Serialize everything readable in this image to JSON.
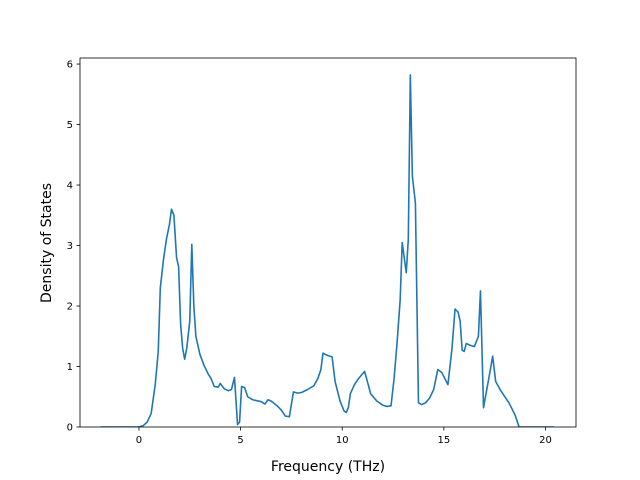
{
  "chart_data": {
    "type": "line",
    "title": "",
    "xlabel": "Frequency (THz)",
    "ylabel": "Density of States",
    "xlim": [
      -2.9,
      21.5
    ],
    "ylim": [
      0,
      6.1
    ],
    "xticks": [
      0,
      5,
      10,
      15,
      20
    ],
    "yticks": [
      0,
      1,
      2,
      3,
      4,
      5,
      6
    ],
    "grid": false,
    "legend": "none",
    "series": [
      {
        "color": "#1f77b4",
        "points": [
          [
            -1.9,
            0.0
          ],
          [
            -1.0,
            0.0
          ],
          [
            0.0,
            0.0
          ],
          [
            0.2,
            0.02
          ],
          [
            0.4,
            0.08
          ],
          [
            0.6,
            0.22
          ],
          [
            0.8,
            0.7
          ],
          [
            0.95,
            1.25
          ],
          [
            1.05,
            2.3
          ],
          [
            1.2,
            2.75
          ],
          [
            1.35,
            3.1
          ],
          [
            1.5,
            3.35
          ],
          [
            1.6,
            3.6
          ],
          [
            1.72,
            3.5
          ],
          [
            1.85,
            2.8
          ],
          [
            1.95,
            2.65
          ],
          [
            2.05,
            1.7
          ],
          [
            2.15,
            1.3
          ],
          [
            2.25,
            1.12
          ],
          [
            2.35,
            1.3
          ],
          [
            2.5,
            1.75
          ],
          [
            2.6,
            3.02
          ],
          [
            2.7,
            2.0
          ],
          [
            2.8,
            1.5
          ],
          [
            3.0,
            1.2
          ],
          [
            3.2,
            1.02
          ],
          [
            3.4,
            0.88
          ],
          [
            3.55,
            0.8
          ],
          [
            3.7,
            0.67
          ],
          [
            3.9,
            0.66
          ],
          [
            4.0,
            0.72
          ],
          [
            4.2,
            0.63
          ],
          [
            4.4,
            0.6
          ],
          [
            4.55,
            0.62
          ],
          [
            4.7,
            0.82
          ],
          [
            4.85,
            0.04
          ],
          [
            4.95,
            0.08
          ],
          [
            5.05,
            0.67
          ],
          [
            5.2,
            0.65
          ],
          [
            5.35,
            0.5
          ],
          [
            5.6,
            0.45
          ],
          [
            6.0,
            0.42
          ],
          [
            6.2,
            0.38
          ],
          [
            6.35,
            0.45
          ],
          [
            6.5,
            0.43
          ],
          [
            6.8,
            0.35
          ],
          [
            7.0,
            0.28
          ],
          [
            7.2,
            0.18
          ],
          [
            7.4,
            0.17
          ],
          [
            7.6,
            0.58
          ],
          [
            7.8,
            0.56
          ],
          [
            8.0,
            0.57
          ],
          [
            8.3,
            0.62
          ],
          [
            8.6,
            0.68
          ],
          [
            8.8,
            0.8
          ],
          [
            8.95,
            0.95
          ],
          [
            9.05,
            1.22
          ],
          [
            9.3,
            1.18
          ],
          [
            9.5,
            1.16
          ],
          [
            9.65,
            0.75
          ],
          [
            9.9,
            0.42
          ],
          [
            10.1,
            0.26
          ],
          [
            10.2,
            0.24
          ],
          [
            10.3,
            0.32
          ],
          [
            10.4,
            0.55
          ],
          [
            10.6,
            0.7
          ],
          [
            10.8,
            0.8
          ],
          [
            11.1,
            0.92
          ],
          [
            11.4,
            0.55
          ],
          [
            11.7,
            0.43
          ],
          [
            12.0,
            0.36
          ],
          [
            12.2,
            0.34
          ],
          [
            12.4,
            0.35
          ],
          [
            12.55,
            0.8
          ],
          [
            12.7,
            1.4
          ],
          [
            12.85,
            2.1
          ],
          [
            12.95,
            3.05
          ],
          [
            13.15,
            2.55
          ],
          [
            13.25,
            3.1
          ],
          [
            13.35,
            5.82
          ],
          [
            13.45,
            4.15
          ],
          [
            13.6,
            3.7
          ],
          [
            13.75,
            0.4
          ],
          [
            13.9,
            0.37
          ],
          [
            14.1,
            0.4
          ],
          [
            14.3,
            0.48
          ],
          [
            14.5,
            0.62
          ],
          [
            14.7,
            0.95
          ],
          [
            14.9,
            0.9
          ],
          [
            15.2,
            0.7
          ],
          [
            15.4,
            1.3
          ],
          [
            15.55,
            1.95
          ],
          [
            15.7,
            1.9
          ],
          [
            15.8,
            1.75
          ],
          [
            15.9,
            1.27
          ],
          [
            16.0,
            1.25
          ],
          [
            16.1,
            1.38
          ],
          [
            16.3,
            1.35
          ],
          [
            16.5,
            1.33
          ],
          [
            16.7,
            1.5
          ],
          [
            16.8,
            2.25
          ],
          [
            16.95,
            0.32
          ],
          [
            17.1,
            0.6
          ],
          [
            17.3,
            0.97
          ],
          [
            17.4,
            1.17
          ],
          [
            17.55,
            0.75
          ],
          [
            17.8,
            0.6
          ],
          [
            18.2,
            0.4
          ],
          [
            18.5,
            0.2
          ],
          [
            18.7,
            0.0
          ],
          [
            19.5,
            0.0
          ],
          [
            20.4,
            0.0
          ]
        ]
      }
    ]
  }
}
